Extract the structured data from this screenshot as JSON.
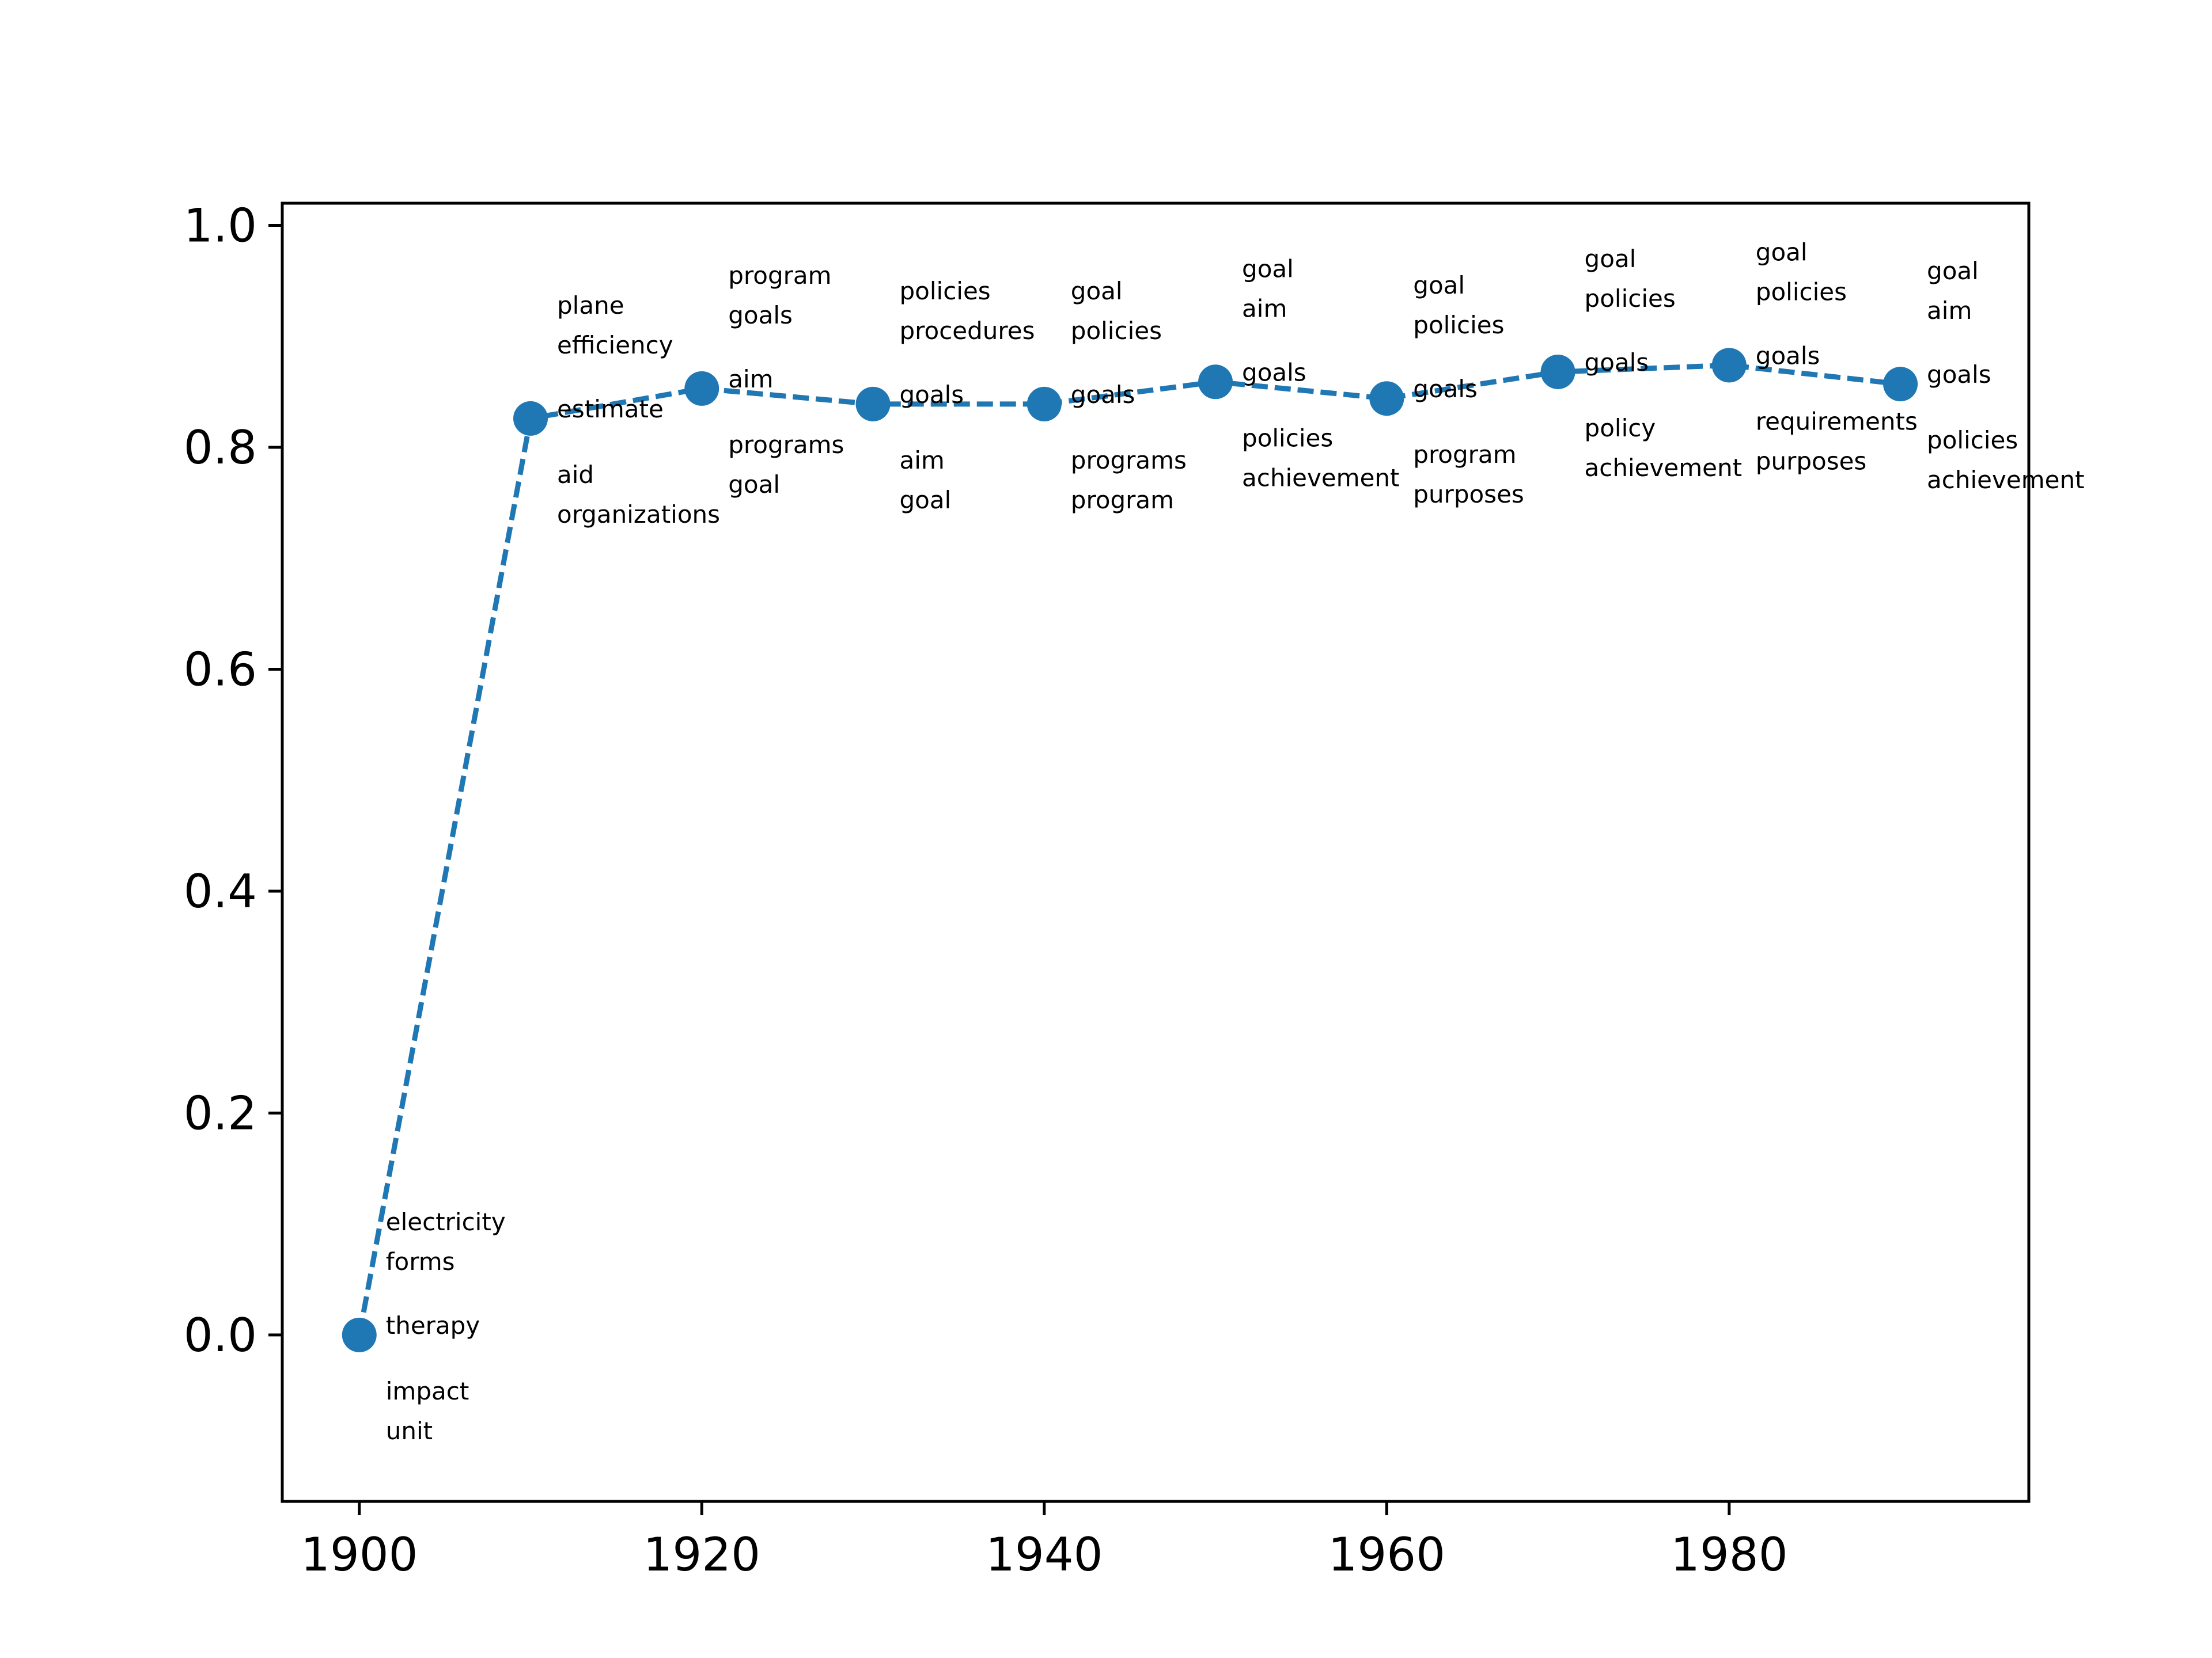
{
  "chart_data": {
    "type": "line",
    "title": "",
    "xlabel": "",
    "ylabel": "",
    "xlim": [
      1895.5,
      1997.5
    ],
    "ylim": [
      -0.15,
      1.02
    ],
    "xticks": [
      1900,
      1920,
      1940,
      1960,
      1980
    ],
    "xtick_labels": [
      "1900",
      "1920",
      "1940",
      "1960",
      "1980"
    ],
    "yticks": [
      0.0,
      0.2,
      0.4,
      0.6,
      0.8,
      1.0
    ],
    "ytick_labels": [
      "0.0",
      "0.2",
      "0.4",
      "0.6",
      "0.8",
      "1.0"
    ],
    "grid": false,
    "legend": "none",
    "line_style": "dashed",
    "marker": "circle",
    "color": "#1f77b4",
    "series": [
      {
        "x": [
          1900,
          1910,
          1920,
          1930,
          1940,
          1950,
          1960,
          1970,
          1980,
          1990
        ],
        "y": [
          0.0,
          0.826,
          0.853,
          0.839,
          0.839,
          0.859,
          0.844,
          0.868,
          0.874,
          0.857
        ]
      }
    ],
    "annotations": [
      {
        "x": 1900,
        "above": [
          "electricity",
          "forms"
        ],
        "center": "therapy",
        "below": [
          "impact",
          "unit"
        ]
      },
      {
        "x": 1910,
        "above": [
          "plane",
          "efficiency"
        ],
        "center": "estimate",
        "below": [
          "aid",
          "organizations"
        ]
      },
      {
        "x": 1920,
        "above": [
          "program",
          "goals"
        ],
        "center": "aim",
        "below": [
          "programs",
          "goal"
        ]
      },
      {
        "x": 1930,
        "above": [
          "policies",
          "procedures"
        ],
        "center": "goals",
        "below": [
          "aim",
          "goal"
        ]
      },
      {
        "x": 1940,
        "above": [
          "goal",
          "policies"
        ],
        "center": "goals",
        "below": [
          "programs",
          "program"
        ]
      },
      {
        "x": 1950,
        "above": [
          "goal",
          "aim"
        ],
        "center": "goals",
        "below": [
          "policies",
          "achievement"
        ]
      },
      {
        "x": 1960,
        "above": [
          "goal",
          "policies"
        ],
        "center": "goals",
        "below": [
          "program",
          "purposes"
        ]
      },
      {
        "x": 1970,
        "above": [
          "goal",
          "policies"
        ],
        "center": "goals",
        "below": [
          "policy",
          "achievement"
        ]
      },
      {
        "x": 1980,
        "above": [
          "goal",
          "policies"
        ],
        "center": "goals",
        "below": [
          "requirements",
          "purposes"
        ]
      },
      {
        "x": 1990,
        "above": [
          "goal",
          "aim"
        ],
        "center": "goals",
        "below": [
          "policies",
          "achievement"
        ]
      }
    ]
  }
}
